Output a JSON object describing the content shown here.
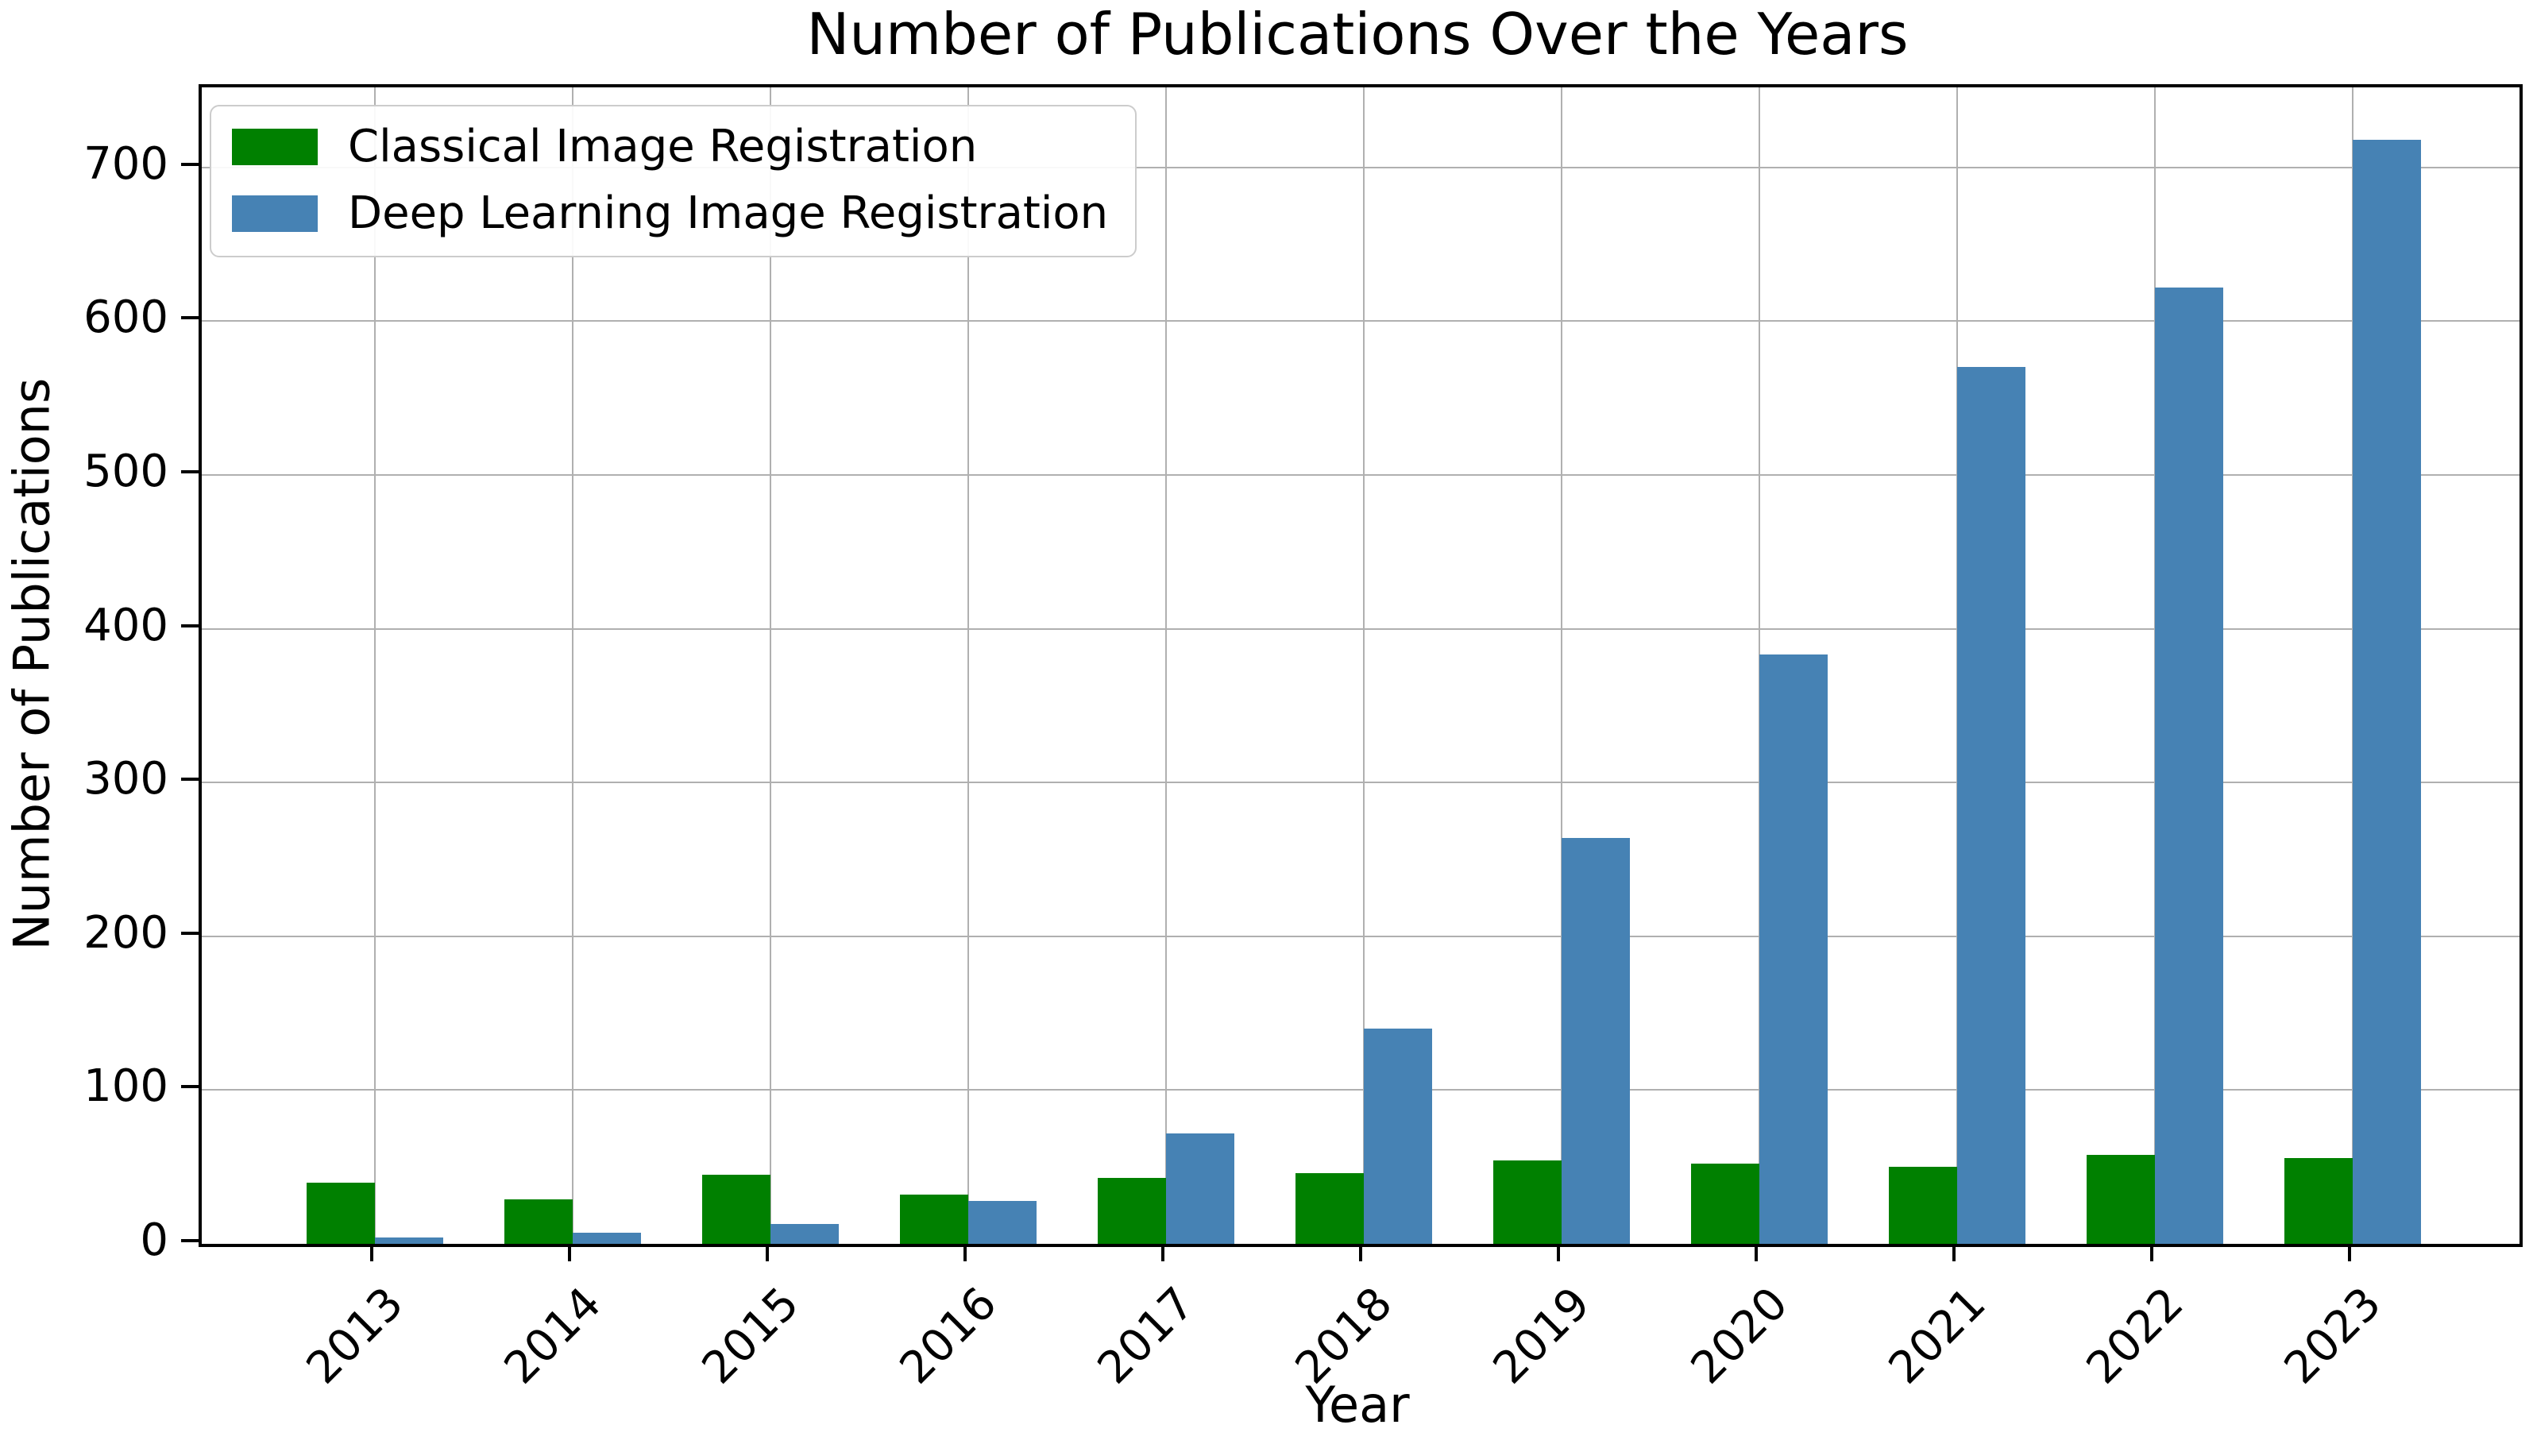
{
  "chart_data": {
    "type": "bar",
    "title": "Number of Publications Over the Years",
    "xlabel": "Year",
    "ylabel": "Number of Publications",
    "categories": [
      "2013",
      "2014",
      "2015",
      "2016",
      "2017",
      "2018",
      "2019",
      "2020",
      "2021",
      "2022",
      "2023"
    ],
    "series": [
      {
        "name": "Classical Image Registration",
        "color": "#008000",
        "values": [
          40,
          29,
          45,
          32,
          43,
          46,
          54,
          52,
          50,
          58,
          56
        ]
      },
      {
        "name": "Deep Learning Image Registration",
        "color": "#4682b4",
        "values": [
          4,
          7,
          13,
          28,
          72,
          140,
          264,
          383,
          570,
          622,
          718
        ]
      }
    ],
    "y_ticks": [
      0,
      100,
      200,
      300,
      400,
      500,
      600,
      700
    ],
    "ylim": [
      0,
      752
    ],
    "grid": true,
    "legend_position": "upper left",
    "x_tick_rotation": 45
  },
  "colors": {
    "grid": "#b0b0b0",
    "spine": "#000000",
    "background": "#ffffff"
  }
}
